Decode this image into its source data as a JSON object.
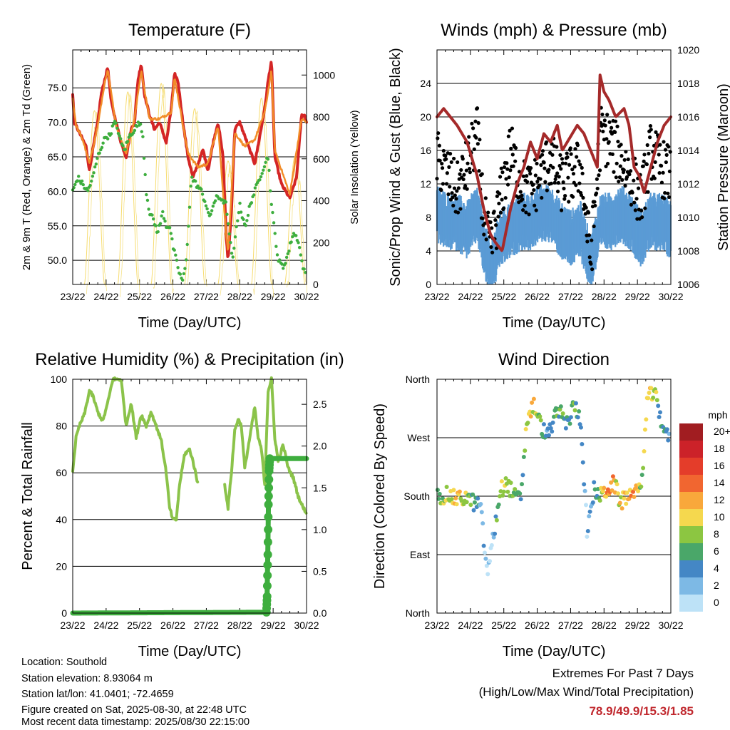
{
  "chart_data": [
    {
      "type": "line",
      "title": "Temperature (F)",
      "xlabel": "Time (Day/UTC)",
      "ylabel": "2m & 9m T (Red, Orange) & 2m Td (Green)",
      "y2label": "Solar Insolation (Yellow)",
      "x_ticks": [
        "23/22",
        "24/22",
        "25/22",
        "26/22",
        "27/22",
        "28/22",
        "29/22",
        "30/22"
      ],
      "ylim": [
        46.5,
        80.5
      ],
      "y_ticks": [
        "50.0",
        "55.0",
        "60.0",
        "65.0",
        "70.0",
        "75.0"
      ],
      "y2lim": [
        0,
        1120
      ],
      "y2_ticks": [
        "0",
        "200",
        "400",
        "600",
        "800",
        "1000"
      ],
      "grid": true,
      "series": [
        {
          "color": "#d42525",
          "style": "line",
          "x": [
            0,
            0.05,
            0.2,
            0.4,
            0.5,
            0.6,
            0.75,
            0.85,
            0.95,
            1.05,
            1.15,
            1.3,
            1.45,
            1.6,
            1.75,
            1.85,
            1.95,
            2.05,
            2.15,
            2.3,
            2.45,
            2.6,
            2.8,
            2.95,
            3.05,
            3.15,
            3.3,
            3.45,
            3.6,
            3.75,
            3.9,
            4.05,
            4.2,
            4.35,
            4.5,
            4.6,
            4.65,
            4.75,
            4.85,
            5.0,
            5.15,
            5.3,
            5.45,
            5.6,
            5.75,
            5.85,
            5.95,
            6.05,
            6.25,
            6.5,
            6.7,
            6.85,
            6.95,
            7.0
          ],
          "y": [
            74,
            70,
            68.5,
            66.5,
            63,
            66,
            70,
            74,
            76,
            78,
            73,
            70,
            67,
            65,
            69,
            70,
            76,
            78.5,
            74,
            71,
            69,
            70,
            67,
            72,
            77,
            76,
            70,
            65,
            62,
            64,
            66,
            63,
            67,
            70,
            65,
            53,
            50,
            57,
            69,
            70,
            68,
            66,
            64,
            68,
            72,
            76,
            79,
            65,
            61,
            59,
            62,
            71,
            71,
            70
          ]
        },
        {
          "color": "#f28c28",
          "style": "line",
          "x": [
            0,
            0.1,
            0.3,
            0.5,
            0.75,
            0.95,
            1.05,
            1.3,
            1.6,
            1.85,
            2.05,
            2.3,
            2.6,
            2.95,
            3.05,
            3.45,
            3.75,
            4.05,
            4.35,
            4.6,
            4.65,
            4.85,
            5.15,
            5.45,
            5.75,
            5.95,
            6.05,
            6.5,
            6.85,
            7.0
          ],
          "y": [
            73.5,
            69.5,
            67.5,
            64,
            69.5,
            75.5,
            77.5,
            69.5,
            65.5,
            70.5,
            77.5,
            70.5,
            70.5,
            71.5,
            76.5,
            65.5,
            63.5,
            64,
            69.5,
            53.5,
            51,
            68.5,
            66.5,
            67.5,
            71.5,
            77.5,
            66,
            59.5,
            70.5,
            70
          ]
        },
        {
          "color": "#3eae3e",
          "style": "dots",
          "x": [
            0,
            0.15,
            0.3,
            0.45,
            0.6,
            0.75,
            0.9,
            1.0,
            1.1,
            1.25,
            1.35,
            1.45,
            1.55,
            1.7,
            1.85,
            2.0,
            2.1,
            2.2,
            2.3,
            2.4,
            2.55,
            2.7,
            2.8,
            2.9,
            3.0,
            3.1,
            3.2,
            3.3,
            3.4,
            3.55,
            3.7,
            3.85,
            4.0,
            4.1,
            4.2,
            4.3,
            4.45,
            4.6,
            4.7,
            4.8,
            4.9,
            5.0,
            5.1,
            5.2,
            5.3,
            5.45,
            5.6,
            5.75,
            5.85,
            5.95,
            6.05,
            6.15,
            6.3,
            6.45,
            6.6,
            6.75,
            6.85,
            6.95
          ],
          "y": [
            60,
            62,
            61,
            60,
            62,
            65,
            67,
            68,
            68,
            70,
            69,
            67,
            66,
            68,
            69,
            70,
            68,
            60,
            57,
            56,
            54,
            57,
            55,
            55,
            52,
            50,
            48,
            47,
            50,
            62,
            61,
            60,
            58,
            56,
            58,
            59,
            59,
            58,
            53,
            50,
            55,
            58,
            56,
            55,
            58,
            60,
            62,
            64,
            65,
            58,
            54,
            50,
            49,
            51,
            54,
            53,
            50,
            48
          ]
        }
      ],
      "solar_peaks": [
        {
          "day": 0.65,
          "peak": 830
        },
        {
          "day": 1.65,
          "peak": 920
        },
        {
          "day": 2.65,
          "peak": 960
        },
        {
          "day": 3.65,
          "peak": 840
        },
        {
          "day": 4.65,
          "peak": 590
        },
        {
          "day": 5.65,
          "peak": 890
        },
        {
          "day": 6.65,
          "peak": 610
        }
      ]
    },
    {
      "type": "line",
      "title": "Winds (mph) & Pressure (mb)",
      "xlabel": "Time (Day/UTC)",
      "ylabel": "Sonic/Prop Wind & Gust (Blue, Black)",
      "y2label": "Station Pressure (Maroon)",
      "x_ticks": [
        "23/22",
        "24/22",
        "25/22",
        "26/22",
        "27/22",
        "28/22",
        "29/22",
        "30/22"
      ],
      "ylim": [
        0,
        28
      ],
      "y_ticks": [
        "0",
        "4",
        "8",
        "12",
        "16",
        "20",
        "24"
      ],
      "y2lim": [
        1006,
        1020
      ],
      "y2_ticks": [
        "1006",
        "1008",
        "1010",
        "1012",
        "1014",
        "1016",
        "1018",
        "1020"
      ],
      "grid": true,
      "series": [
        {
          "color": "#5a9bd5",
          "style": "band",
          "x": [
            0,
            0.3,
            0.6,
            0.9,
            1.2,
            1.4,
            1.6,
            1.9,
            2.2,
            2.5,
            2.8,
            3.1,
            3.4,
            3.7,
            4.0,
            4.3,
            4.6,
            4.9,
            5.2,
            5.5,
            5.8,
            6.1,
            6.4,
            6.7,
            7.0
          ],
          "y": [
            9,
            8,
            8,
            7,
            9,
            5,
            2,
            6,
            7,
            8,
            8,
            9,
            9,
            7,
            6,
            7,
            3,
            8,
            8,
            9,
            8,
            6,
            8,
            8,
            7
          ]
        },
        {
          "color": "#000000",
          "style": "dots",
          "x": [
            0,
            0.3,
            0.6,
            0.9,
            1.2,
            1.4,
            1.6,
            1.9,
            2.2,
            2.5,
            2.8,
            3.1,
            3.4,
            3.7,
            4.0,
            4.3,
            4.6,
            4.9,
            5.2,
            5.5,
            5.8,
            6.1,
            6.4,
            6.7,
            7.0
          ],
          "y": [
            15,
            13,
            11,
            14,
            18,
            8,
            4,
            10,
            16,
            12,
            11,
            13,
            15,
            12,
            13,
            14,
            3,
            18,
            17,
            15,
            13,
            10,
            16,
            14,
            13
          ]
        },
        {
          "color": "#a52a2a",
          "style": "line",
          "axis": "right",
          "x": [
            0,
            0.2,
            0.4,
            0.6,
            0.9,
            1.2,
            1.4,
            1.6,
            1.75,
            1.95,
            2.2,
            2.4,
            2.6,
            2.8,
            3.0,
            3.2,
            3.4,
            3.6,
            3.75,
            3.9,
            4.05,
            4.2,
            4.4,
            4.6,
            4.8,
            4.88,
            5.0,
            5.15,
            5.35,
            5.6,
            5.75,
            5.9,
            6.05,
            6.2,
            6.4,
            6.6,
            6.8,
            7.0
          ],
          "y": [
            1016,
            1016.5,
            1016,
            1015.5,
            1014.5,
            1012.5,
            1010.5,
            1009,
            1008.5,
            1008,
            1010.5,
            1012,
            1013,
            1014.5,
            1013.5,
            1015,
            1014.5,
            1015.5,
            1014,
            1014.5,
            1015,
            1015.5,
            1015,
            1014,
            1013,
            1018.5,
            1017.5,
            1017,
            1016,
            1016.5,
            1015.5,
            1013,
            1012.5,
            1011.5,
            1013,
            1014.5,
            1015.5,
            1016
          ]
        }
      ]
    },
    {
      "type": "line",
      "title": "Relative Humidity (%) & Precipitation (in)",
      "xlabel": "Time (Day/UTC)",
      "ylabel": "Percent & Total Rainfall",
      "x_ticks": [
        "23/22",
        "24/22",
        "25/22",
        "26/22",
        "27/22",
        "28/22",
        "29/22",
        "30/22"
      ],
      "ylim": [
        0,
        100
      ],
      "y_ticks": [
        "0",
        "20",
        "40",
        "60",
        "80",
        "100"
      ],
      "y2lim": [
        0,
        2.8
      ],
      "y2_ticks": [
        "0.0",
        "0.5",
        "1.0",
        "1.5",
        "2.0",
        "2.5"
      ],
      "grid": true,
      "series": [
        {
          "color": "#8bc34a",
          "style": "line",
          "x": [
            0,
            0.1,
            0.2,
            0.35,
            0.5,
            0.6,
            0.75,
            0.9,
            1.05,
            1.2,
            1.3,
            1.45,
            1.6,
            1.75,
            1.9,
            2.05,
            2.2,
            2.35,
            2.5,
            2.65,
            2.8,
            2.9,
            3.0,
            3.1,
            3.2,
            3.35,
            3.5,
            3.6,
            3.75
          ],
          "y": [
            61,
            75,
            80,
            85,
            95,
            93,
            86,
            82,
            90,
            100,
            100,
            100,
            80,
            90,
            75,
            85,
            80,
            86,
            80,
            74,
            60,
            45,
            40,
            40,
            55,
            68,
            70,
            65,
            55
          ]
        },
        {
          "color": "#8bc34a",
          "style": "line",
          "x": [
            4.55,
            4.65,
            4.75,
            4.85,
            4.95,
            5.05,
            5.15,
            5.3,
            5.45,
            5.55,
            5.65,
            5.75,
            5.85,
            5.95,
            6.05,
            6.15,
            6.3,
            6.45,
            6.6,
            6.75,
            6.9,
            7.0
          ],
          "y": [
            55,
            45,
            60,
            78,
            83,
            80,
            62,
            75,
            88,
            75,
            70,
            55,
            95,
            100,
            75,
            65,
            72,
            62,
            58,
            50,
            45,
            43
          ]
        },
        {
          "color": "#3eae3e",
          "style": "precip",
          "x": [
            0,
            5.8,
            5.82,
            5.84,
            5.86,
            5.88,
            5.9,
            6.0,
            7.0
          ],
          "y": [
            0,
            0.01,
            0.2,
            0.7,
            1.3,
            1.7,
            1.85,
            1.85,
            1.85
          ]
        }
      ]
    },
    {
      "type": "scatter",
      "title": "Wind Direction",
      "xlabel": "Time (Day/UTC)",
      "ylabel": "Direction (Colored By Speed)",
      "x_ticks": [
        "23/22",
        "24/22",
        "25/22",
        "26/22",
        "27/22",
        "28/22",
        "29/22",
        "30/22"
      ],
      "y_ticks": [
        "North",
        "East",
        "South",
        "West",
        "North"
      ],
      "ylim": [
        0,
        360
      ],
      "legend_title": "mph",
      "legend_labels": [
        "20+",
        "18",
        "16",
        "14",
        "12",
        "10",
        "8",
        "6",
        "4",
        "2",
        "0"
      ],
      "legend_colors": [
        "#a11d21",
        "#cc2229",
        "#e43d2a",
        "#f16630",
        "#f9a83b",
        "#f5d84e",
        "#8cc641",
        "#4aa769",
        "#4487c5",
        "#7db9e5",
        "#bde2f7"
      ],
      "series": [
        {
          "name": "direction",
          "x": [
            0.1,
            0.3,
            0.6,
            0.9,
            1.1,
            1.3,
            1.5,
            1.7,
            1.9,
            2.1,
            2.3,
            2.5,
            2.7,
            2.9,
            3.1,
            3.3,
            3.5,
            3.7,
            3.9,
            4.1,
            4.3,
            4.5,
            4.7,
            4.9,
            5.1,
            5.3,
            5.5,
            5.7,
            5.9,
            6.1,
            6.3,
            6.5,
            6.7,
            6.9
          ],
          "y": [
            180,
            182,
            175,
            178,
            170,
            165,
            60,
            120,
            190,
            200,
            180,
            175,
            300,
            320,
            290,
            270,
            300,
            310,
            290,
            320,
            300,
            120,
            190,
            180,
            190,
            200,
            170,
            180,
            190,
            185,
            330,
            340,
            300,
            270
          ],
          "speed": [
            8,
            10,
            12,
            8,
            6,
            5,
            2,
            3,
            11,
            10,
            8,
            6,
            10,
            12,
            8,
            5,
            6,
            8,
            6,
            7,
            5,
            2,
            6,
            8,
            14,
            12,
            10,
            14,
            12,
            8,
            12,
            10,
            6,
            4
          ]
        }
      ]
    }
  ],
  "info_lines": [
    "Location: Southold",
    "Station elevation: 8.93064 m",
    "Station lat/lon: 41.0401; -72.4659",
    "Figure created on Sat, 2025-08-30, at 22:48 UTC",
    "Most recent data timestamp: 2025/08/30 22:15:00"
  ],
  "extremes": {
    "title": "Extremes For Past 7 Days",
    "subtitle": "(High/Low/Max Wind/Total Precipitation)",
    "values": "78.9/49.9/15.3/1.85"
  }
}
